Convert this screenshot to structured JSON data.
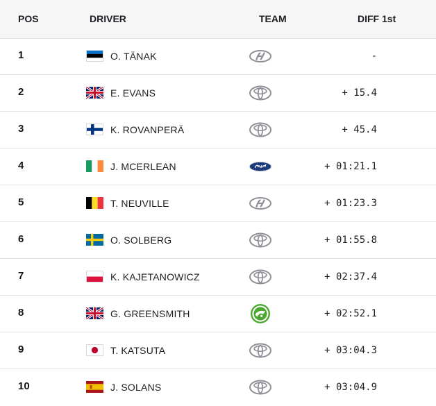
{
  "headers": {
    "pos": "POS",
    "driver": "DRIVER",
    "team": "TEAM",
    "diff": "DIFF 1st"
  },
  "rows": [
    {
      "pos": "1",
      "driver": "O. TÄNAK",
      "flag": "estonia-flag",
      "team": "hyundai-logo-icon",
      "diff": "-"
    },
    {
      "pos": "2",
      "driver": "E. EVANS",
      "flag": "uk-flag",
      "team": "toyota-logo-icon",
      "diff": "+ 15.4"
    },
    {
      "pos": "3",
      "driver": "K. ROVANPERÄ",
      "flag": "finland-flag",
      "team": "toyota-logo-icon",
      "diff": "+ 45.4"
    },
    {
      "pos": "4",
      "driver": "J. MCERLEAN",
      "flag": "ireland-flag",
      "team": "ford-logo-icon",
      "diff": "+ 01:21.1"
    },
    {
      "pos": "5",
      "driver": "T. NEUVILLE",
      "flag": "belgium-flag",
      "team": "hyundai-logo-icon",
      "diff": "+ 01:23.3"
    },
    {
      "pos": "6",
      "driver": "O. SOLBERG",
      "flag": "sweden-flag",
      "team": "toyota-logo-icon",
      "diff": "+ 01:55.8"
    },
    {
      "pos": "7",
      "driver": "K. KAJETANOWICZ",
      "flag": "poland-flag",
      "team": "toyota-logo-icon",
      "diff": "+ 02:37.4"
    },
    {
      "pos": "8",
      "driver": "G. GREENSMITH",
      "flag": "uk-flag",
      "team": "skoda-logo-icon",
      "diff": "+ 02:52.1"
    },
    {
      "pos": "9",
      "driver": "T. KATSUTA",
      "flag": "japan-flag",
      "team": "toyota-logo-icon",
      "diff": "+ 03:04.3"
    },
    {
      "pos": "10",
      "driver": "J. SOLANS",
      "flag": "spain-flag",
      "team": "toyota-logo-icon",
      "diff": "+ 03:04.9"
    }
  ],
  "colors": {
    "header_bg": "#f6f6f7",
    "row_divider": "#e6e6ea",
    "text": "#1d1d22",
    "logo_grey": "#8e8e96",
    "ford_blue": "#1b3a7a",
    "skoda_green": "#4ba82e"
  }
}
